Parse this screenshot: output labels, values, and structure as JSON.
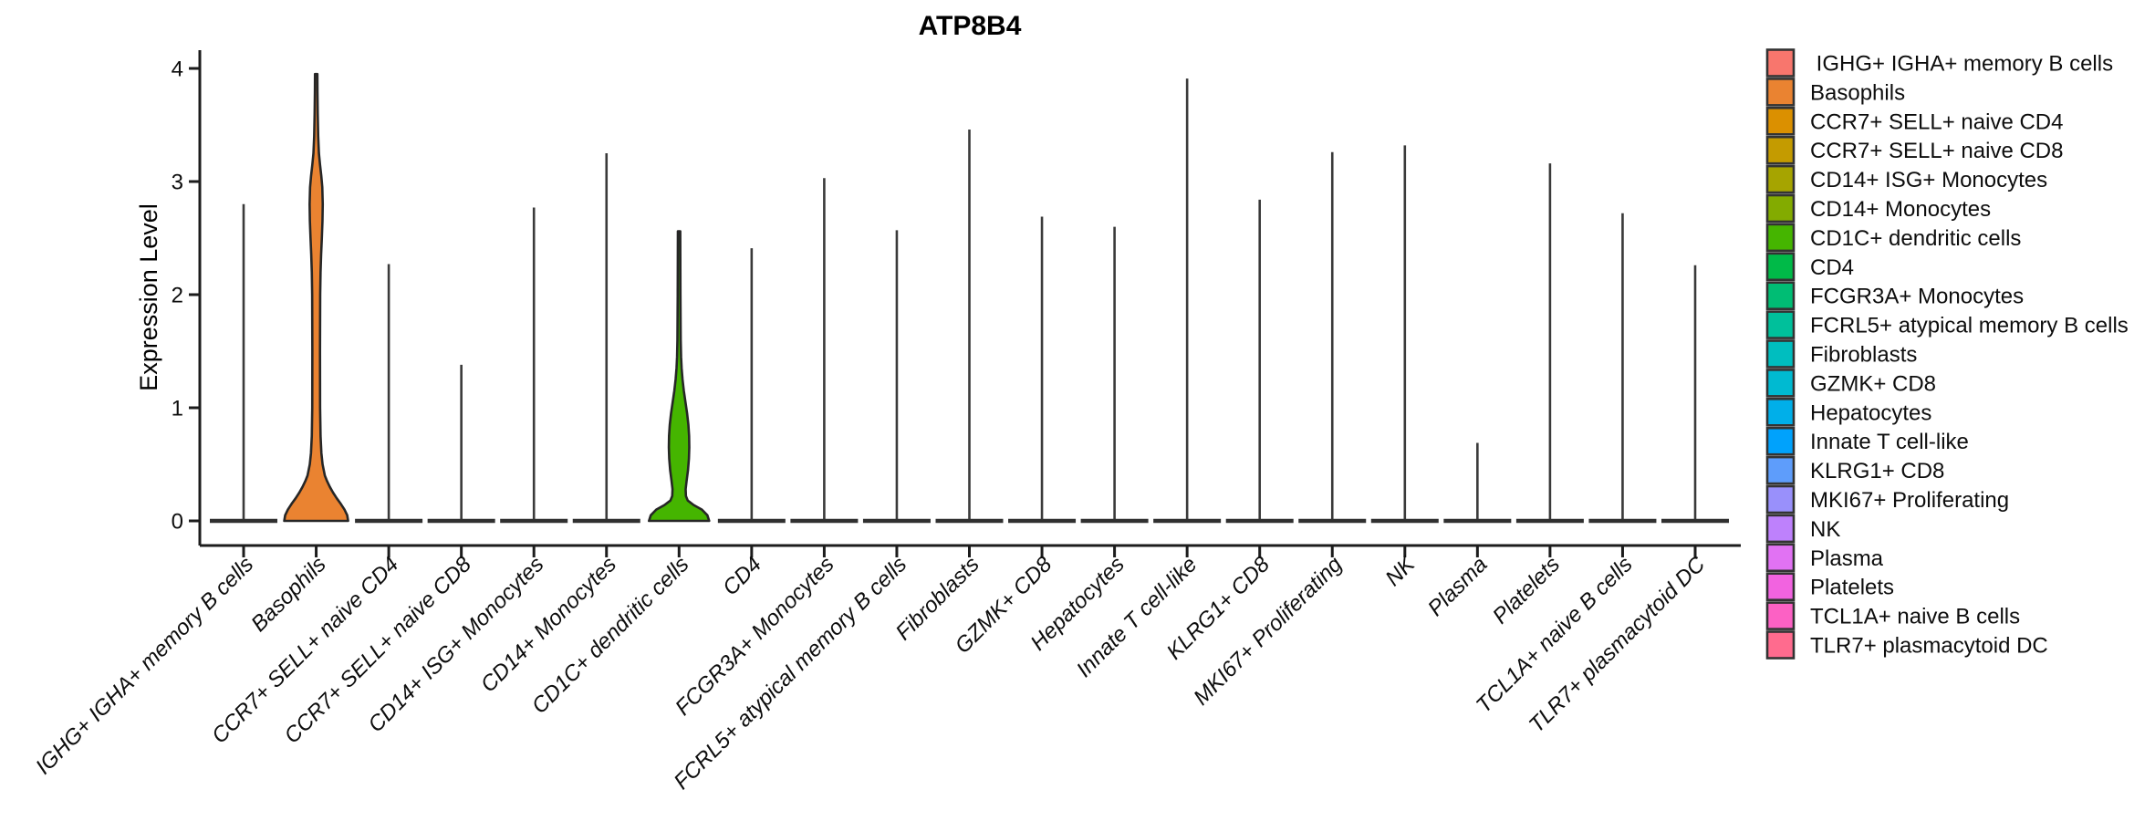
{
  "chart_data": {
    "type": "violin",
    "title": "ATP8B4",
    "ylabel": "Expression Level",
    "xlabel": "",
    "ylim": [
      0,
      4
    ],
    "yticks": [
      0,
      1,
      2,
      3,
      4
    ],
    "grid": false,
    "legend_position": "right",
    "x_label_style": "italic, rotated 45deg",
    "categories": [
      " IGHG+ IGHA+ memory B cells",
      "Basophils",
      "CCR7+ SELL+ naive CD4",
      "CCR7+ SELL+ naive CD8",
      "CD14+ ISG+ Monocytes",
      "CD14+ Monocytes",
      "CD1C+ dendritic cells",
      "CD4",
      "FCGR3A+ Monocytes",
      "FCRL5+ atypical memory B cells",
      "Fibroblasts",
      "GZMK+ CD8",
      "Hepatocytes",
      "Innate T cell-like",
      "KLRG1+ CD8",
      "MKI67+ Proliferating",
      "NK",
      "Plasma",
      "Platelets",
      "TCL1A+ naive B cells",
      "TLR7+ plasmacytoid DC"
    ],
    "colors": [
      "#F8766D",
      "#EA8331",
      "#DB9000",
      "#C49B00",
      "#A6A400",
      "#83AB00",
      "#45B500",
      "#00BA48",
      "#00BD74",
      "#00C09B",
      "#00BEBF",
      "#00BAD1",
      "#00AFE9",
      "#00A2FC",
      "#5E9DFB",
      "#9990FB",
      "#BE81FC",
      "#E172F3",
      "#F263E0",
      "#FC61C4",
      "#FF6B8E"
    ],
    "series": [
      {
        "name": " IGHG+ IGHA+ memory B cells",
        "max_expression": 2.8,
        "shape": "spike"
      },
      {
        "name": "Basophils",
        "max_expression": 3.95,
        "shape": "violin",
        "density_profile": [
          [
            0.0,
            35
          ],
          [
            0.05,
            34
          ],
          [
            0.1,
            31
          ],
          [
            0.15,
            27
          ],
          [
            0.2,
            22.5
          ],
          [
            0.25,
            18.5
          ],
          [
            0.3,
            15
          ],
          [
            0.35,
            12
          ],
          [
            0.4,
            9.5
          ],
          [
            0.5,
            7
          ],
          [
            0.6,
            5.7
          ],
          [
            0.75,
            4.8
          ],
          [
            1.0,
            4.3
          ],
          [
            1.5,
            4.2
          ],
          [
            2.0,
            4.4
          ],
          [
            2.2,
            4.8
          ],
          [
            2.35,
            5.4
          ],
          [
            2.5,
            6.2
          ],
          [
            2.65,
            6.9
          ],
          [
            2.8,
            7.2
          ],
          [
            2.95,
            6.7
          ],
          [
            3.05,
            5.6
          ],
          [
            3.15,
            4.2
          ],
          [
            3.25,
            3.0
          ],
          [
            3.4,
            2.2
          ],
          [
            3.6,
            1.7
          ],
          [
            3.8,
            1.4
          ],
          [
            3.95,
            1.3
          ]
        ]
      },
      {
        "name": "CCR7+ SELL+ naive CD4",
        "max_expression": 2.27,
        "shape": "spike"
      },
      {
        "name": "CCR7+ SELL+ naive CD8",
        "max_expression": 1.38,
        "shape": "spike"
      },
      {
        "name": "CD14+ ISG+ Monocytes",
        "max_expression": 2.77,
        "shape": "spike"
      },
      {
        "name": "CD14+ Monocytes",
        "max_expression": 3.25,
        "shape": "spike"
      },
      {
        "name": "CD1C+ dendritic cells",
        "max_expression": 2.56,
        "shape": "violin",
        "density_profile": [
          [
            0.0,
            33
          ],
          [
            0.05,
            31
          ],
          [
            0.1,
            25
          ],
          [
            0.14,
            16
          ],
          [
            0.18,
            9.5
          ],
          [
            0.22,
            7.5
          ],
          [
            0.28,
            7.2
          ],
          [
            0.35,
            8.2
          ],
          [
            0.45,
            9.8
          ],
          [
            0.55,
            10.8
          ],
          [
            0.65,
            11.2
          ],
          [
            0.75,
            11.0
          ],
          [
            0.85,
            10.2
          ],
          [
            0.95,
            8.8
          ],
          [
            1.05,
            7.0
          ],
          [
            1.15,
            5.2
          ],
          [
            1.25,
            3.8
          ],
          [
            1.35,
            2.8
          ],
          [
            1.45,
            2.2
          ],
          [
            1.6,
            1.8
          ],
          [
            2.0,
            1.5
          ],
          [
            2.56,
            1.3
          ]
        ]
      },
      {
        "name": "CD4",
        "max_expression": 2.41,
        "shape": "spike"
      },
      {
        "name": "FCGR3A+ Monocytes",
        "max_expression": 3.03,
        "shape": "spike"
      },
      {
        "name": "FCRL5+ atypical memory B cells",
        "max_expression": 2.57,
        "shape": "spike"
      },
      {
        "name": "Fibroblasts",
        "max_expression": 3.46,
        "shape": "spike"
      },
      {
        "name": "GZMK+ CD8",
        "max_expression": 2.69,
        "shape": "spike"
      },
      {
        "name": "Hepatocytes",
        "max_expression": 2.6,
        "shape": "spike"
      },
      {
        "name": "Innate T cell-like",
        "max_expression": 3.91,
        "shape": "spike"
      },
      {
        "name": "KLRG1+ CD8",
        "max_expression": 2.84,
        "shape": "spike"
      },
      {
        "name": "MKI67+ Proliferating",
        "max_expression": 3.26,
        "shape": "spike"
      },
      {
        "name": "NK",
        "max_expression": 3.32,
        "shape": "spike"
      },
      {
        "name": "Plasma",
        "max_expression": 0.69,
        "shape": "spike"
      },
      {
        "name": "Platelets",
        "max_expression": 3.16,
        "shape": "spike"
      },
      {
        "name": "TCL1A+ naive B cells",
        "max_expression": 2.72,
        "shape": "spike"
      },
      {
        "name": "TLR7+ plasmacytoid DC",
        "max_expression": 2.26,
        "shape": "spike"
      }
    ]
  }
}
